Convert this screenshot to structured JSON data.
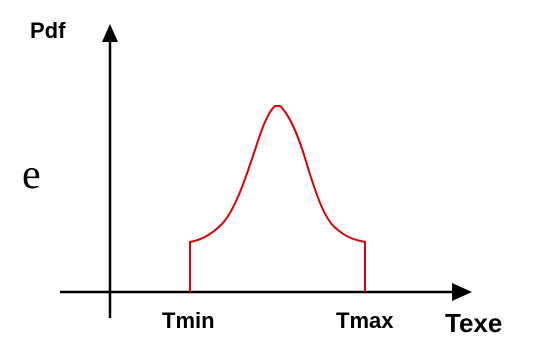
{
  "diagram": {
    "y_axis_label": "Pdf",
    "x_axis_label": "Texe",
    "tick_min_label": "Tmin",
    "tick_max_label": "Tmax",
    "side_letter": "e",
    "curve_color": "#e00000",
    "axis_color": "#000000"
  }
}
